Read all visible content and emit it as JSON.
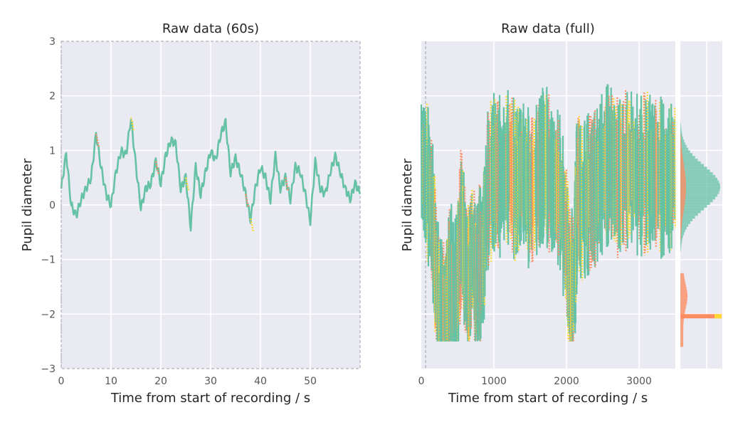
{
  "colors": {
    "background": "#eaeaf2",
    "grid": "#ffffff",
    "valid": "#66c2a5",
    "interpolated": "#fc8d62",
    "blink": "#ffd92f",
    "window_box": "#a0a0a8"
  },
  "chart_data": [
    {
      "type": "line",
      "title": "Raw data (60s)",
      "xlabel": "Time from start of recording / s",
      "ylabel": "Pupil diameter",
      "xlim": [
        0,
        60
      ],
      "ylim": [
        -3,
        3
      ],
      "xticks": [
        "0",
        "10",
        "20",
        "30",
        "40",
        "50"
      ],
      "yticks": [
        "−3",
        "−2",
        "−1",
        "0",
        "1",
        "2",
        "3"
      ],
      "grid": true,
      "series": [
        {
          "x": [
            0,
            1,
            2,
            3,
            4,
            5,
            6,
            7,
            8,
            9,
            10,
            11,
            12,
            13,
            14,
            15,
            16,
            17,
            18,
            19,
            20,
            21,
            22,
            23,
            24,
            25,
            26,
            27,
            28,
            29,
            30,
            31,
            32,
            33,
            34,
            35,
            36,
            37,
            38,
            39,
            40,
            41,
            42,
            43,
            44,
            45,
            46,
            47,
            48,
            49,
            50,
            51,
            52,
            53,
            54,
            55,
            56,
            57,
            58,
            59,
            60
          ],
          "values": [
            0.3,
            0.95,
            0.0,
            -0.2,
            0.1,
            0.3,
            0.5,
            1.3,
            0.7,
            0.2,
            0.0,
            0.6,
            1.0,
            0.9,
            1.6,
            0.7,
            -0.05,
            0.3,
            0.4,
            0.8,
            0.4,
            0.9,
            1.2,
            1.1,
            0.3,
            0.5,
            -0.4,
            0.7,
            0.2,
            0.6,
            1.0,
            0.8,
            1.3,
            1.5,
            0.6,
            0.85,
            0.6,
            0.2,
            -0.25,
            0.3,
            0.7,
            0.5,
            0.1,
            0.9,
            0.3,
            0.5,
            0.1,
            0.7,
            0.6,
            0.2,
            -0.3,
            0.8,
            0.3,
            0.2,
            0.6,
            0.9,
            0.6,
            0.3,
            0.1,
            0.4,
            0.2
          ]
        }
      ]
    },
    {
      "type": "scatter",
      "title": "Raw data (full)",
      "xlabel": "Time from start of recording / s",
      "ylabel": "Pupil diameter",
      "xlim": [
        0,
        3500
      ],
      "ylim": [
        -3,
        3
      ],
      "xticks": [
        "0",
        "1000",
        "2000",
        "3000"
      ],
      "grid": true,
      "series": [
        {
          "x": [
            0,
            100,
            150,
            200,
            250,
            300,
            350,
            400,
            450,
            500,
            550,
            600,
            650,
            700,
            750,
            800,
            850,
            900,
            1000,
            1100,
            1200,
            1300,
            1400,
            1500,
            1600,
            1700,
            1800,
            1900,
            2000,
            2050,
            2100,
            2150,
            2200,
            2300,
            2400,
            2500,
            2600,
            2700,
            2800,
            2900,
            3000,
            3100,
            3200,
            3300,
            3400,
            3500
          ],
          "values": [
            0.8,
            0.3,
            -0.2,
            -1.2,
            -2.0,
            -1.9,
            -2.1,
            -1.3,
            -1.8,
            -1.4,
            -0.3,
            -1.0,
            -1.5,
            -0.8,
            -1.4,
            -1.1,
            -1.0,
            0.2,
            0.6,
            0.5,
            0.7,
            0.4,
            0.6,
            0.2,
            0.5,
            0.8,
            0.4,
            0.3,
            -0.7,
            -1.6,
            -1.5,
            0.4,
            0.0,
            0.2,
            0.3,
            0.6,
            0.8,
            0.5,
            0.6,
            0.7,
            0.5,
            0.6,
            0.6,
            0.5,
            0.4,
            0.7
          ]
        }
      ]
    }
  ]
}
